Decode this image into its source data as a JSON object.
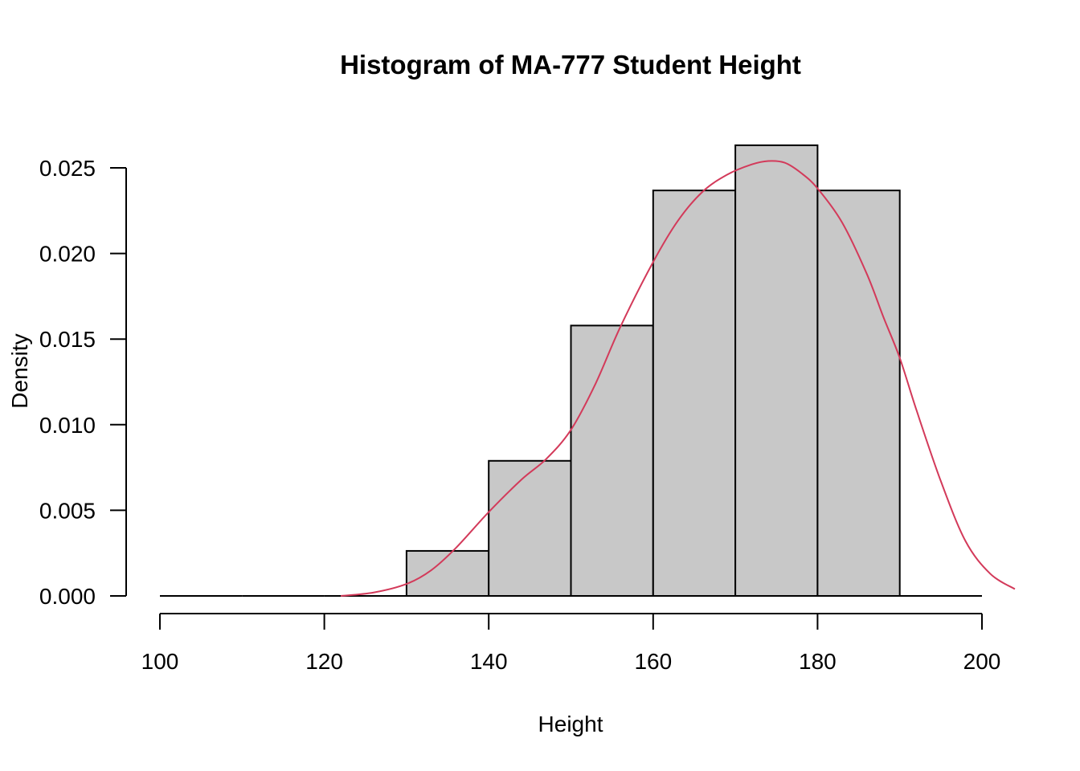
{
  "chart_data": {
    "type": "bar",
    "title": "Histogram of MA-777 Student Height",
    "xlabel": "Height",
    "ylabel": "Density",
    "xlim": [
      100,
      200
    ],
    "ylim": [
      0,
      0.025
    ],
    "x_ticks": [
      "100",
      "120",
      "140",
      "160",
      "180",
      "200"
    ],
    "y_ticks": [
      "0.000",
      "0.005",
      "0.010",
      "0.015",
      "0.020",
      "0.025"
    ],
    "bins": [
      {
        "start": 100,
        "end": 110,
        "density": 0.0
      },
      {
        "start": 110,
        "end": 120,
        "density": 0.0
      },
      {
        "start": 120,
        "end": 130,
        "density": 0.0
      },
      {
        "start": 130,
        "end": 140,
        "density": 0.00263
      },
      {
        "start": 140,
        "end": 150,
        "density": 0.00789
      },
      {
        "start": 150,
        "end": 160,
        "density": 0.01579
      },
      {
        "start": 160,
        "end": 170,
        "density": 0.02368
      },
      {
        "start": 170,
        "end": 180,
        "density": 0.02632
      },
      {
        "start": 180,
        "end": 190,
        "density": 0.02368
      },
      {
        "start": 190,
        "end": 200,
        "density": 0.0
      }
    ],
    "bar_fill": "#c8c8c8",
    "bar_stroke": "#000000",
    "density_curve": {
      "color": "#d33a5a",
      "x": [
        122,
        126,
        130,
        133,
        136,
        140,
        144,
        147,
        150,
        153,
        156,
        160,
        163,
        166,
        169,
        172,
        174,
        176,
        178,
        180,
        183,
        186,
        188,
        190,
        192,
        195,
        198,
        201,
        204
      ],
      "y": [
        0.0,
        0.0002,
        0.0007,
        0.0015,
        0.0028,
        0.0049,
        0.0068,
        0.008,
        0.0097,
        0.0124,
        0.0157,
        0.0195,
        0.0219,
        0.0236,
        0.0246,
        0.0252,
        0.0254,
        0.0253,
        0.0247,
        0.0238,
        0.0218,
        0.0188,
        0.0163,
        0.0139,
        0.0109,
        0.0067,
        0.0032,
        0.0013,
        0.0004
      ]
    },
    "grid": false
  }
}
